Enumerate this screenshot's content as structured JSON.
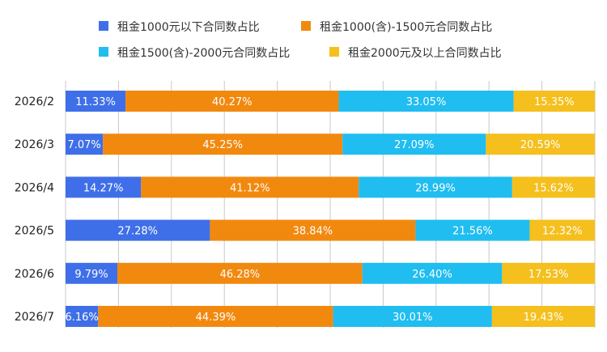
{
  "chart_data": {
    "type": "bar",
    "orientation": "horizontal",
    "stacked": true,
    "percent": true,
    "categories": [
      "2026/2",
      "2026/3",
      "2026/4",
      "2026/5",
      "2026/6",
      "2026/7"
    ],
    "xlim": [
      0,
      100
    ],
    "grid": true,
    "legend_position": "top",
    "series": [
      {
        "name": "租金1000元以下合同数占比",
        "color": "#3f6fe8",
        "values": [
          11.33,
          7.07,
          14.27,
          27.28,
          9.79,
          6.16
        ],
        "labels": [
          "11.33%",
          "7.07%",
          "14.27%",
          "27.28%",
          "9.79%",
          "6.16%"
        ]
      },
      {
        "name": "租金1000(含)-1500元合同数占比",
        "color": "#f2890f",
        "values": [
          40.27,
          45.25,
          41.12,
          38.84,
          46.28,
          44.39
        ],
        "labels": [
          "40.27%",
          "45.25%",
          "41.12%",
          "38.84%",
          "46.28%",
          "44.39%"
        ]
      },
      {
        "name": "租金1500(含)-2000元合同数占比",
        "color": "#20bdf0",
        "values": [
          33.05,
          27.09,
          28.99,
          21.56,
          26.4,
          30.01
        ],
        "labels": [
          "33.05%",
          "27.09%",
          "28.99%",
          "21.56%",
          "26.40%",
          "30.01%"
        ]
      },
      {
        "name": "租金2000元及以上合同数占比",
        "color": "#f5bf1d",
        "values": [
          15.35,
          20.59,
          15.62,
          12.32,
          17.53,
          19.43
        ],
        "labels": [
          "15.35%",
          "20.59%",
          "15.62%",
          "12.32%",
          "17.53%",
          "19.43%"
        ]
      }
    ]
  }
}
